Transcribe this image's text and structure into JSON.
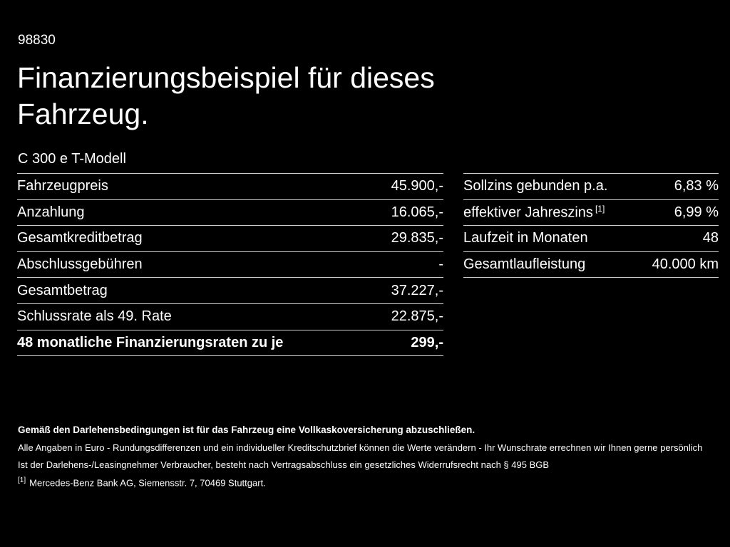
{
  "page": {
    "code": "98830",
    "title_line1": "Finanzierungsbeispiel für dieses",
    "title_line2": "Fahrzeug.",
    "model": "C 300 e T-Modell"
  },
  "left_table": {
    "rows": [
      {
        "label": "Fahrzeugpreis",
        "value": "45.900,-"
      },
      {
        "label": "Anzahlung",
        "value": "16.065,-"
      },
      {
        "label": "Gesamtkreditbetrag",
        "value": "29.835,-"
      },
      {
        "label": "Abschlussgebühren",
        "value": "-"
      },
      {
        "label": "Gesamtbetrag",
        "value": "37.227,-"
      },
      {
        "label": "Schlussrate als 49. Rate",
        "value": "22.875,-"
      },
      {
        "label": "48 monatliche Finanzierungsraten zu je",
        "value": "299,-"
      }
    ]
  },
  "right_table": {
    "rows": [
      {
        "label": "Sollzins gebunden p.a.",
        "value": "6,83 %"
      },
      {
        "label": "effektiver Jahreszins",
        "sup": "[1]",
        "value": "6,99 %"
      },
      {
        "label": "Laufzeit in Monaten",
        "value": "48"
      },
      {
        "label": "Gesamtlaufleistung",
        "value": "40.000 km"
      }
    ]
  },
  "footer": {
    "bold_line": "Gemäß den Darlehensbedingungen ist für das Fahrzeug eine Vollkaskoversicherung abzuschließen.",
    "line1": "Alle Angaben in Euro - Rundungsdifferenzen und ein individueller Kreditschutzbrief können die Werte verändern - Ihr Wunschrate errechnen wir Ihnen gerne persönlich",
    "line2": "Ist der Darlehens-/Leasingnehmer Verbraucher, besteht nach Vertragsabschluss ein gesetzliches Widerrufsrecht nach § 495 BGB",
    "footnote_marker": "[1]",
    "footnote_text": "Mercedes-Benz Bank AG, Siemensstr. 7, 70469 Stuttgart."
  },
  "colors": {
    "background": "#000000",
    "text": "#ffffff",
    "divider": "#cfcfcf"
  }
}
